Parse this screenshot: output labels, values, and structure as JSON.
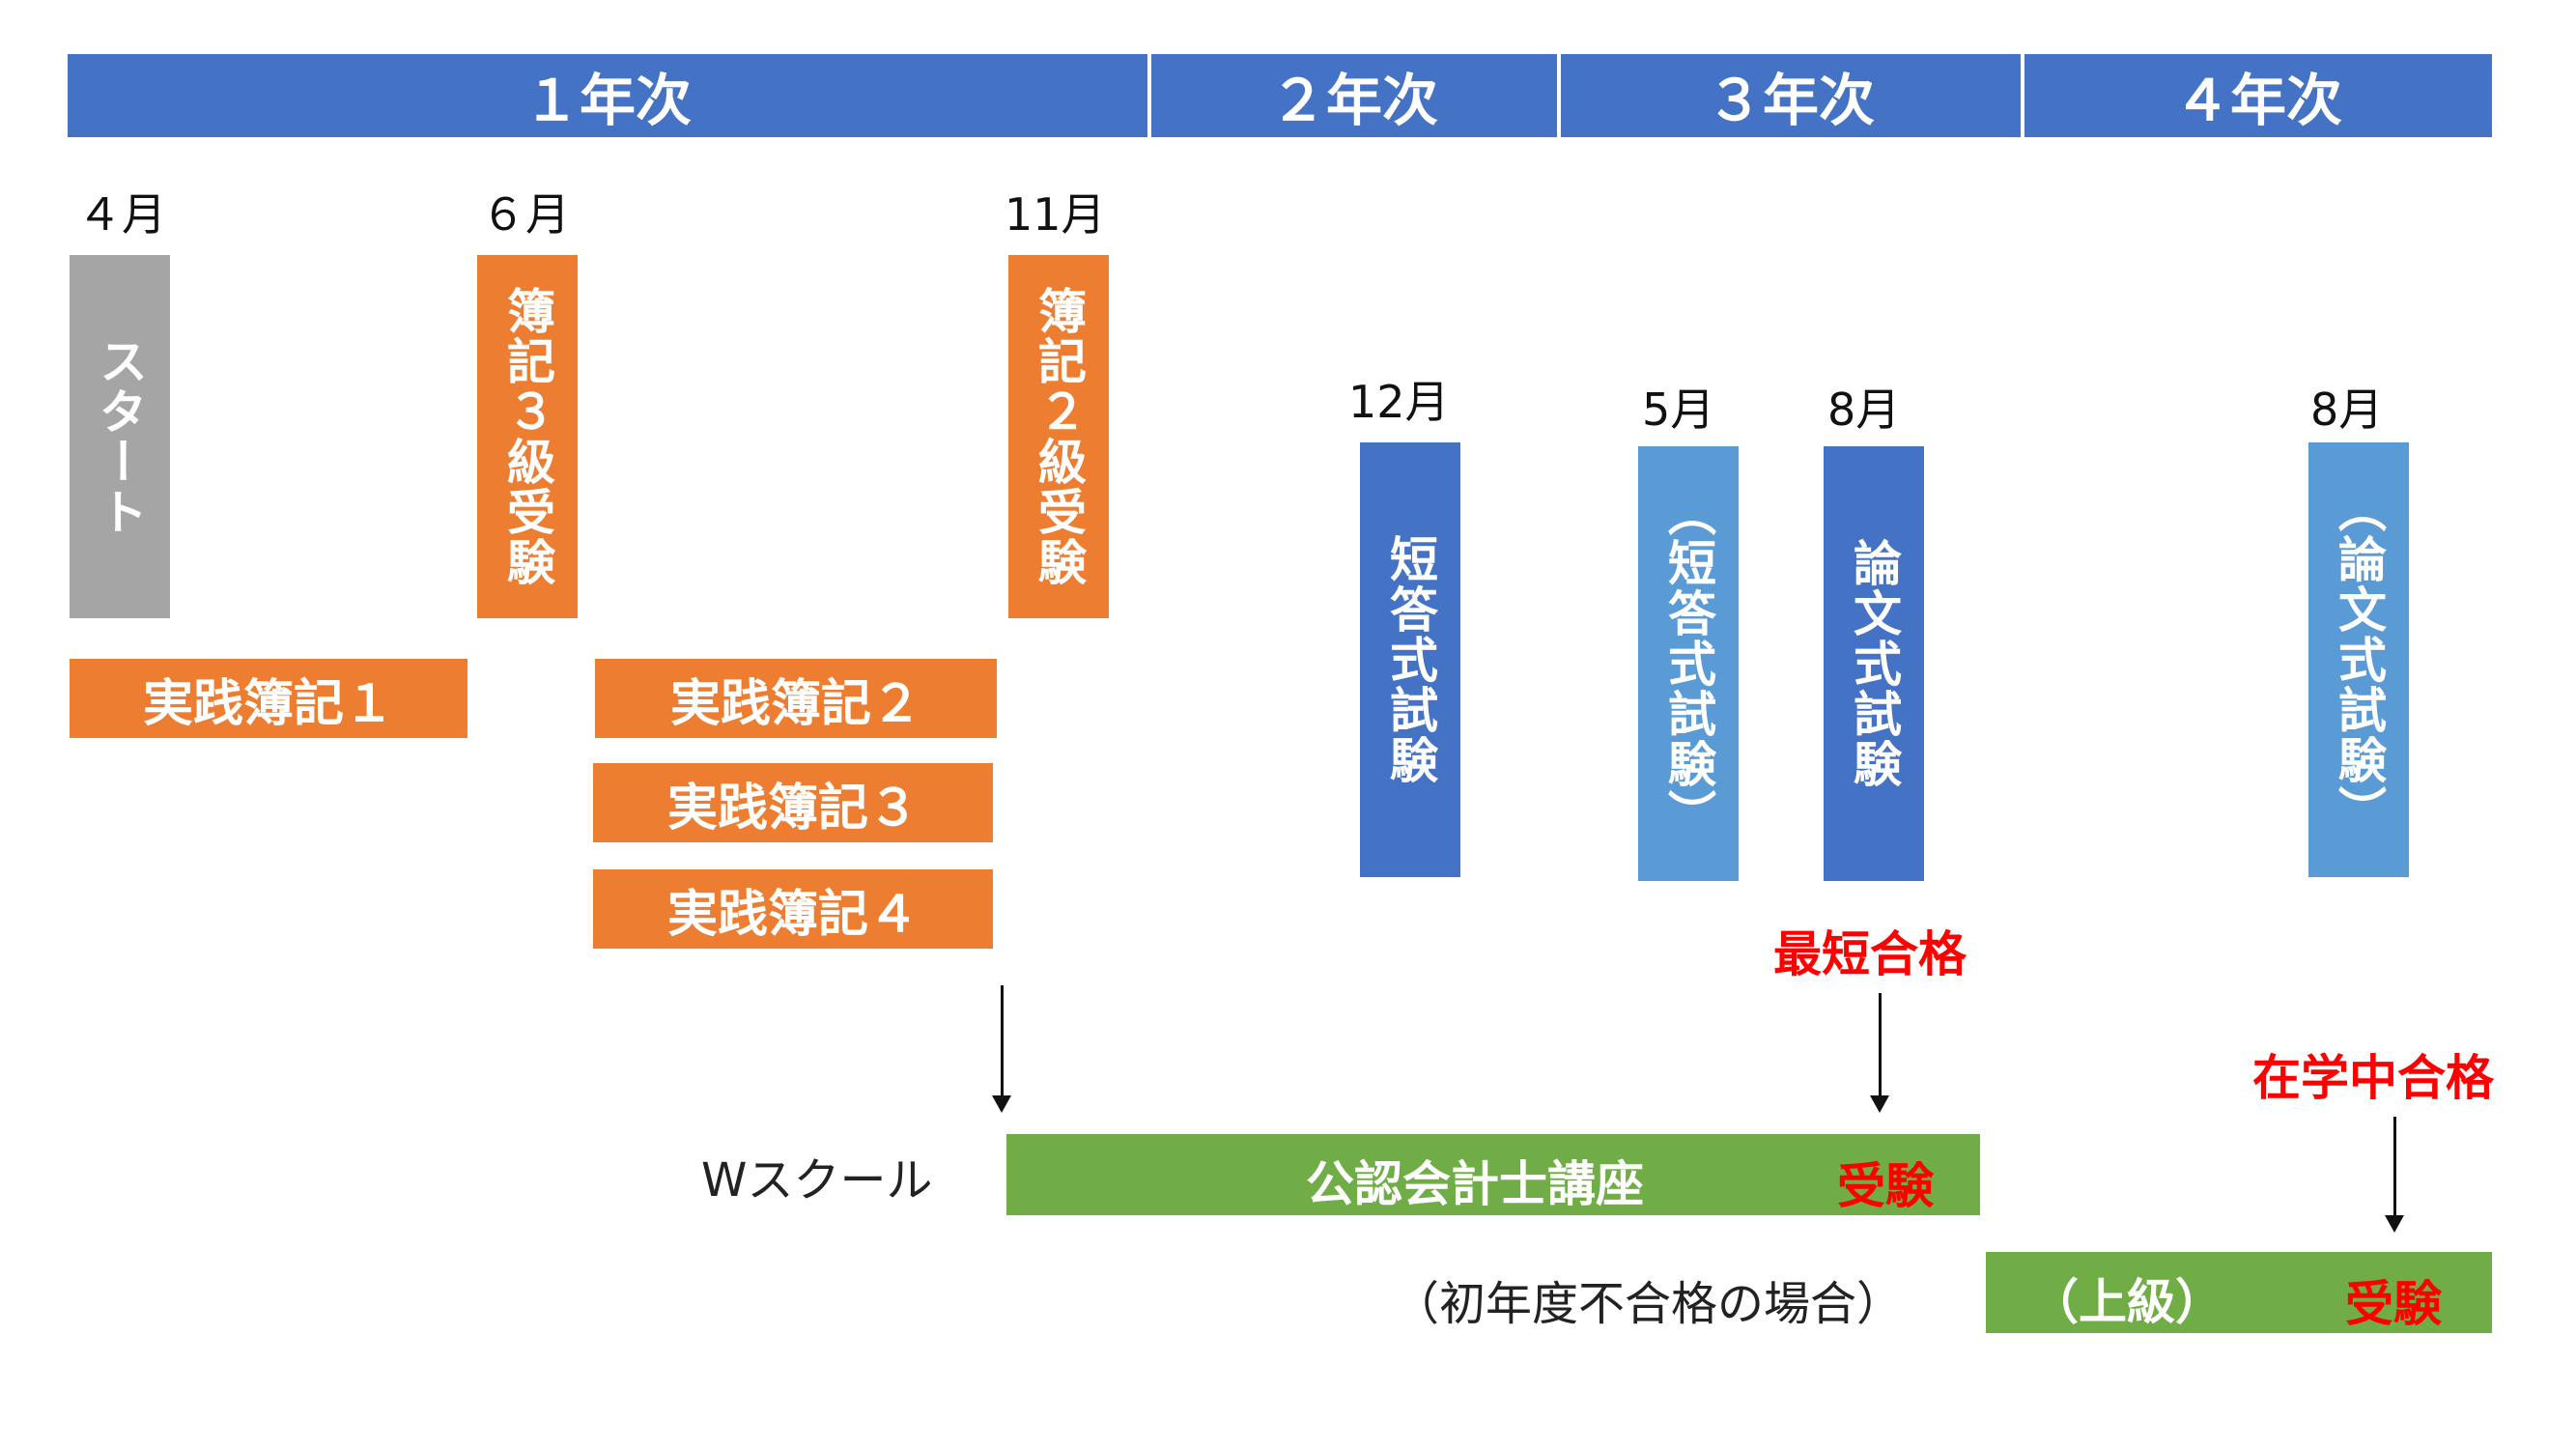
{
  "years": [
    "１年次",
    "２年次",
    "３年次",
    "４年次"
  ],
  "months": {
    "m1": "４月",
    "m2": "６月",
    "m3": "11月",
    "m4": "12月",
    "m5": "5月",
    "m6": "8月",
    "m7": "8月"
  },
  "vertical_bars": {
    "start": "スタート",
    "boki3": "簿記３級受験",
    "boki2": "簿記２級受験",
    "short_exam": "短答式試験",
    "short_exam_paren": "（短答式試験）",
    "essay_exam": "論文式試験",
    "essay_exam_paren": "（論文式試験）"
  },
  "courses": {
    "c1": "実践簿記１",
    "c2": "実践簿記２",
    "c3": "実践簿記３",
    "c4": "実践簿記４"
  },
  "wschool": {
    "label": "Wスクール",
    "course": "公認会計士講座",
    "exam": "受験",
    "fail_case": "（初年度不合格の場合）",
    "advanced": "（上級）",
    "advanced_exam": "受験"
  },
  "results": {
    "fastest": "最短合格",
    "in_school": "在学中合格"
  },
  "colors": {
    "header_blue": "#4472c4",
    "orange": "#ed7d31",
    "gray": "#a5a5a5",
    "light_blue": "#5b9bd5",
    "green": "#70ad47",
    "red": "#ff0000"
  }
}
